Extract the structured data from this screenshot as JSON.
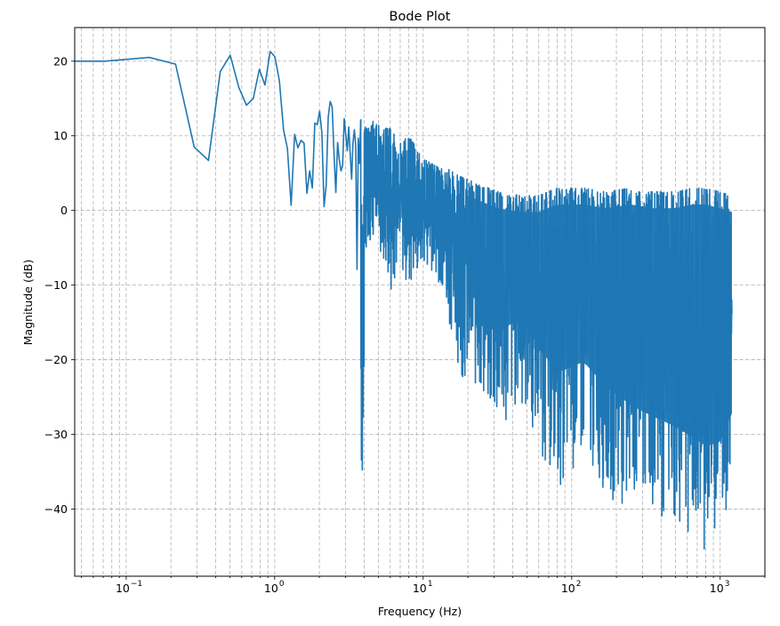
{
  "chart_data": {
    "type": "line",
    "title": "Bode Plot",
    "xlabel": "Frequency (Hz)",
    "ylabel": "Magnitude (dB)",
    "xscale": "log",
    "xlim": [
      0.045,
      2000
    ],
    "ylim": [
      -49,
      24.5
    ],
    "grid": {
      "on": true,
      "which": "both",
      "style": "dashed",
      "color": "#b0b0b0"
    },
    "x_ticks": [
      {
        "value": 0.1,
        "base": "10",
        "exp": "−1"
      },
      {
        "value": 1,
        "base": "10",
        "exp": "0"
      },
      {
        "value": 10,
        "base": "10",
        "exp": "1"
      },
      {
        "value": 100,
        "base": "10",
        "exp": "2"
      },
      {
        "value": 1000,
        "base": "10",
        "exp": "3"
      }
    ],
    "y_ticks": [
      {
        "value": 20,
        "label": "20"
      },
      {
        "value": 10,
        "label": "10"
      },
      {
        "value": 0,
        "label": "0"
      },
      {
        "value": -10,
        "label": "−10"
      },
      {
        "value": -20,
        "label": "−20"
      },
      {
        "value": -30,
        "label": "−30"
      },
      {
        "value": -40,
        "label": "−40"
      }
    ],
    "series": [
      {
        "color": "#1f77b4",
        "line_width": 1.6,
        "points": [
          [
            0.045,
            20.0
          ],
          [
            0.072,
            20.0
          ],
          [
            0.143,
            20.5
          ],
          [
            0.215,
            19.6
          ],
          [
            0.287,
            8.5
          ],
          [
            0.358,
            6.7
          ],
          [
            0.43,
            18.6
          ],
          [
            0.502,
            20.8
          ],
          [
            0.573,
            16.5
          ],
          [
            0.645,
            14.1
          ],
          [
            0.717,
            15.0
          ],
          [
            0.788,
            18.9
          ],
          [
            0.86,
            16.8
          ],
          [
            0.932,
            21.3
          ],
          [
            1.003,
            20.6
          ],
          [
            1.075,
            17.4
          ],
          [
            1.147,
            10.8
          ],
          [
            1.218,
            8.3
          ],
          [
            1.29,
            0.7
          ],
          [
            1.362,
            10.2
          ],
          [
            1.433,
            8.4
          ],
          [
            1.505,
            9.4
          ],
          [
            1.577,
            9.0
          ],
          [
            1.648,
            2.3
          ],
          [
            1.72,
            5.3
          ],
          [
            1.792,
            3.0
          ],
          [
            1.863,
            11.7
          ],
          [
            1.935,
            11.5
          ],
          [
            2.007,
            13.3
          ],
          [
            2.078,
            10.4
          ],
          [
            2.15,
            0.5
          ],
          [
            2.222,
            3.4
          ],
          [
            2.293,
            12.5
          ],
          [
            2.365,
            14.6
          ],
          [
            2.437,
            13.9
          ],
          [
            2.508,
            7.7
          ],
          [
            2.58,
            2.4
          ],
          [
            2.652,
            9.1
          ],
          [
            2.723,
            6.8
          ],
          [
            2.795,
            5.3
          ],
          [
            2.867,
            6.0
          ],
          [
            2.938,
            12.3
          ],
          [
            3.01,
            10.1
          ],
          [
            3.082,
            8.0
          ],
          [
            3.153,
            11.2
          ],
          [
            3.225,
            7.6
          ],
          [
            3.297,
            4.2
          ],
          [
            3.368,
            9.1
          ],
          [
            3.44,
            10.8
          ],
          [
            3.512,
            8.7
          ],
          [
            3.583,
            -7.9
          ],
          [
            3.655,
            9.7
          ],
          [
            3.727,
            6.3
          ],
          [
            3.798,
            12.2
          ]
        ],
        "dense_envelope": [
          [
            4.0,
            -8.0,
            11.0
          ],
          [
            4.6,
            -4.0,
            12.0
          ],
          [
            5.3,
            -6.0,
            11.0
          ],
          [
            6.0,
            -11.0,
            11.0
          ],
          [
            7.0,
            -8.0,
            9.0
          ],
          [
            8.0,
            -11.0,
            10.0
          ],
          [
            10.0,
            -8.0,
            7.0
          ],
          [
            12.0,
            -8.0,
            6.0
          ],
          [
            15.0,
            -15.0,
            5.5
          ],
          [
            18.0,
            -22.5,
            4.5
          ],
          [
            24.0,
            -25.0,
            3.5
          ],
          [
            32.0,
            -30.5,
            2.5
          ],
          [
            45.0,
            -26.0,
            2.0
          ],
          [
            60.0,
            -32.0,
            2.0
          ],
          [
            80.0,
            -37.5,
            3.0
          ],
          [
            120.0,
            -34.0,
            3.0
          ],
          [
            170.0,
            -38.0,
            2.5
          ],
          [
            250.0,
            -41.0,
            3.0
          ],
          [
            350.0,
            -42.0,
            2.5
          ],
          [
            500.0,
            -43.0,
            2.5
          ],
          [
            650.0,
            -44.5,
            3.0
          ],
          [
            800.0,
            -45.5,
            3.0
          ],
          [
            1000.0,
            -44.0,
            2.5
          ],
          [
            1200.0,
            -38.0,
            2.0
          ]
        ]
      }
    ]
  }
}
